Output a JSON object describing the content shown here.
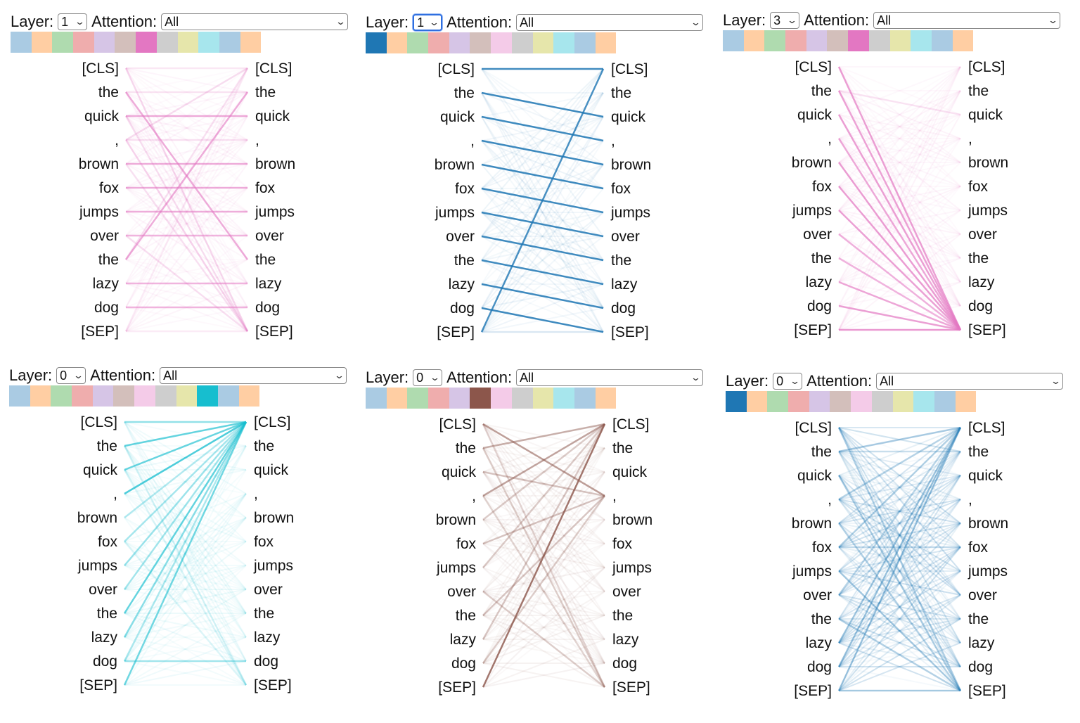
{
  "labels": {
    "layer": "Layer:",
    "attention": "Attention:"
  },
  "head_colors": [
    "#1f77b4",
    "#ff7f0e",
    "#2ca02c",
    "#d62728",
    "#9467bd",
    "#8c564b",
    "#e377c2",
    "#7f7f7f",
    "#bcbd22",
    "#17becf",
    "#1f77b4",
    "#ff7f0e"
  ],
  "tokens": [
    "[CLS]",
    "the",
    "quick",
    ",",
    "brown",
    "fox",
    "jumps",
    "over",
    "the",
    "lazy",
    "dog",
    "[SEP]"
  ],
  "panels": [
    {
      "layer": "1",
      "attention": "All",
      "selected_head": 6,
      "layer_focused": false,
      "attention_links": [
        [
          0,
          0,
          0.15
        ],
        [
          1,
          1,
          0.15
        ],
        [
          2,
          2,
          0.6
        ],
        [
          3,
          3,
          0.2
        ],
        [
          4,
          4,
          0.6
        ],
        [
          5,
          5,
          0.6
        ],
        [
          6,
          6,
          0.6
        ],
        [
          7,
          7,
          0.55
        ],
        [
          9,
          9,
          0.55
        ],
        [
          10,
          10,
          0.55
        ],
        [
          11,
          11,
          0.15
        ],
        [
          1,
          8,
          0.6
        ],
        [
          8,
          1,
          0.6
        ],
        [
          0,
          11,
          0.25
        ],
        [
          3,
          11,
          0.3
        ],
        [
          2,
          11,
          0.2
        ],
        [
          4,
          11,
          0.2
        ],
        [
          7,
          11,
          0.2
        ],
        [
          8,
          0,
          0.2
        ],
        [
          3,
          0,
          0.2
        ],
        [
          11,
          0,
          0.15
        ]
      ]
    },
    {
      "layer": "1",
      "attention": "All",
      "selected_head": 0,
      "layer_focused": true,
      "attention_links": [
        [
          0,
          0,
          0.85
        ],
        [
          1,
          2,
          0.85
        ],
        [
          2,
          3,
          0.85
        ],
        [
          3,
          4,
          0.85
        ],
        [
          4,
          5,
          0.85
        ],
        [
          5,
          6,
          0.85
        ],
        [
          6,
          7,
          0.85
        ],
        [
          7,
          8,
          0.85
        ],
        [
          8,
          9,
          0.85
        ],
        [
          9,
          10,
          0.85
        ],
        [
          10,
          11,
          0.85
        ],
        [
          11,
          0,
          0.8
        ],
        [
          11,
          11,
          0.12
        ]
      ]
    },
    {
      "layer": "3",
      "attention": "All",
      "selected_head": 6,
      "layer_focused": false,
      "attention_links": [
        [
          0,
          11,
          0.7
        ],
        [
          1,
          11,
          0.65
        ],
        [
          2,
          11,
          0.7
        ],
        [
          3,
          11,
          0.6
        ],
        [
          4,
          11,
          0.7
        ],
        [
          5,
          11,
          0.7
        ],
        [
          6,
          11,
          0.7
        ],
        [
          7,
          11,
          0.55
        ],
        [
          8,
          11,
          0.55
        ],
        [
          9,
          11,
          0.65
        ],
        [
          10,
          11,
          0.7
        ],
        [
          11,
          11,
          0.75
        ],
        [
          1,
          2,
          0.15
        ]
      ]
    },
    {
      "layer": "0",
      "attention": "All",
      "selected_head": 9,
      "layer_focused": false,
      "attention_links": [
        [
          0,
          0,
          0.45
        ],
        [
          1,
          0,
          0.65
        ],
        [
          2,
          0,
          0.65
        ],
        [
          3,
          0,
          0.75
        ],
        [
          4,
          0,
          0.3
        ],
        [
          5,
          0,
          0.35
        ],
        [
          6,
          0,
          0.4
        ],
        [
          7,
          0,
          0.35
        ],
        [
          8,
          0,
          0.65
        ],
        [
          9,
          0,
          0.5
        ],
        [
          10,
          0,
          0.35
        ],
        [
          11,
          0,
          0.6
        ],
        [
          10,
          10,
          0.4
        ],
        [
          1,
          11,
          0.15
        ],
        [
          2,
          11,
          0.15
        ],
        [
          5,
          11,
          0.15
        ]
      ]
    },
    {
      "layer": "0",
      "attention": "All",
      "selected_head": 5,
      "layer_focused": false,
      "attention_links": [
        [
          0,
          3,
          0.55
        ],
        [
          1,
          0,
          0.45
        ],
        [
          3,
          0,
          0.5
        ],
        [
          11,
          0,
          0.8
        ],
        [
          4,
          0,
          0.3
        ],
        [
          6,
          0,
          0.3
        ],
        [
          9,
          0,
          0.3
        ],
        [
          2,
          3,
          0.3
        ],
        [
          5,
          3,
          0.3
        ],
        [
          8,
          3,
          0.3
        ],
        [
          10,
          3,
          0.25
        ],
        [
          1,
          11,
          0.25
        ],
        [
          3,
          11,
          0.25
        ],
        [
          7,
          11,
          0.25
        ],
        [
          0,
          11,
          0.2
        ]
      ]
    },
    {
      "layer": "0",
      "attention": "All",
      "selected_head": 0,
      "layer_focused": false,
      "attention_links": [
        [
          0,
          11,
          0.35
        ],
        [
          1,
          0,
          0.35
        ],
        [
          2,
          11,
          0.3
        ],
        [
          3,
          0,
          0.3
        ],
        [
          4,
          11,
          0.3
        ],
        [
          5,
          0,
          0.3
        ],
        [
          6,
          11,
          0.3
        ],
        [
          7,
          0,
          0.3
        ],
        [
          8,
          11,
          0.3
        ],
        [
          9,
          0,
          0.3
        ],
        [
          10,
          0,
          0.3
        ],
        [
          11,
          0,
          0.35
        ],
        [
          11,
          11,
          0.3
        ],
        [
          1,
          1,
          0.2
        ],
        [
          5,
          5,
          0.2
        ]
      ]
    }
  ]
}
